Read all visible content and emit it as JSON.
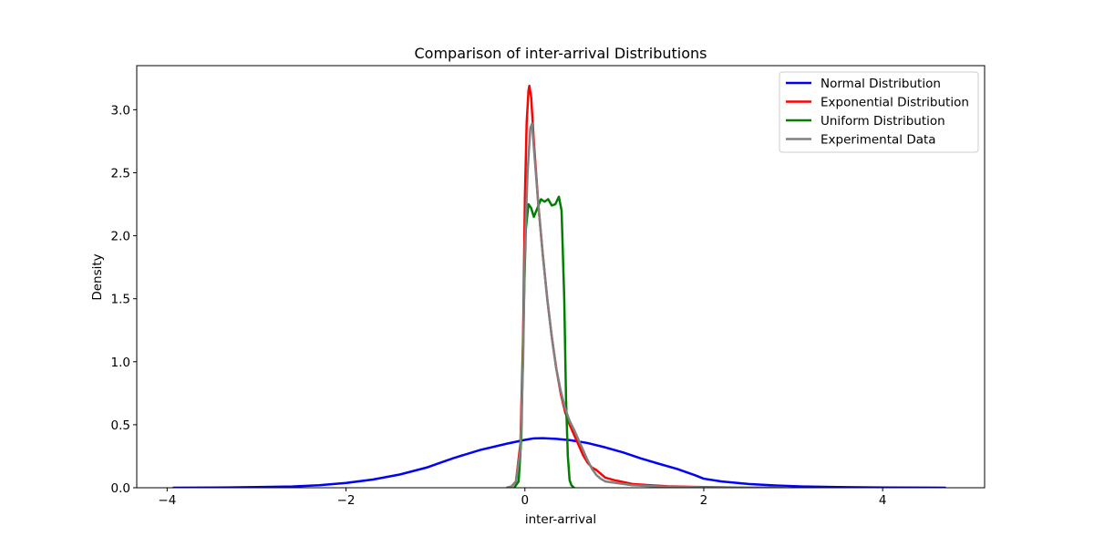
{
  "chart_data": {
    "type": "line",
    "title": "Comparison of inter-arrival Distributions",
    "xlabel": "inter-arrival",
    "ylabel": "Density",
    "xlim": [
      -4.34,
      5.14
    ],
    "ylim": [
      0.0,
      3.35
    ],
    "xticks": [
      -4,
      -2,
      0,
      2,
      4
    ],
    "xtick_labels": [
      "−4",
      "−2",
      "0",
      "2",
      "4"
    ],
    "yticks": [
      0.0,
      0.5,
      1.0,
      1.5,
      2.0,
      2.5,
      3.0
    ],
    "ytick_labels": [
      "0.0",
      "0.5",
      "1.0",
      "1.5",
      "2.0",
      "2.5",
      "3.0"
    ],
    "grid": false,
    "legend_position": "top-right",
    "series": [
      {
        "name": "Normal Distribution",
        "color": "#0000ff",
        "points": [
          [
            -3.93,
            0.0
          ],
          [
            -3.4,
            0.002
          ],
          [
            -3.0,
            0.005
          ],
          [
            -2.6,
            0.01
          ],
          [
            -2.3,
            0.02
          ],
          [
            -2.0,
            0.038
          ],
          [
            -1.7,
            0.065
          ],
          [
            -1.4,
            0.105
          ],
          [
            -1.1,
            0.16
          ],
          [
            -0.8,
            0.235
          ],
          [
            -0.5,
            0.3
          ],
          [
            -0.2,
            0.35
          ],
          [
            0.0,
            0.38
          ],
          [
            0.1,
            0.392
          ],
          [
            0.2,
            0.393
          ],
          [
            0.35,
            0.388
          ],
          [
            0.5,
            0.378
          ],
          [
            0.7,
            0.355
          ],
          [
            0.9,
            0.32
          ],
          [
            1.1,
            0.28
          ],
          [
            1.3,
            0.232
          ],
          [
            1.5,
            0.19
          ],
          [
            1.7,
            0.15
          ],
          [
            1.9,
            0.1
          ],
          [
            2.0,
            0.072
          ],
          [
            2.2,
            0.05
          ],
          [
            2.5,
            0.03
          ],
          [
            2.8,
            0.018
          ],
          [
            3.1,
            0.01
          ],
          [
            3.5,
            0.005
          ],
          [
            4.0,
            0.002
          ],
          [
            4.4,
            0.001
          ],
          [
            4.7,
            0.0
          ]
        ]
      },
      {
        "name": "Exponential Distribution",
        "color": "#ff0000",
        "points": [
          [
            -0.2,
            0.0
          ],
          [
            -0.15,
            0.01
          ],
          [
            -0.1,
            0.05
          ],
          [
            -0.05,
            0.35
          ],
          [
            -0.02,
            1.2
          ],
          [
            0.0,
            2.3
          ],
          [
            0.02,
            2.9
          ],
          [
            0.04,
            3.15
          ],
          [
            0.05,
            3.19
          ],
          [
            0.07,
            3.1
          ],
          [
            0.1,
            2.75
          ],
          [
            0.15,
            2.25
          ],
          [
            0.2,
            1.85
          ],
          [
            0.25,
            1.5
          ],
          [
            0.3,
            1.2
          ],
          [
            0.35,
            0.95
          ],
          [
            0.4,
            0.75
          ],
          [
            0.45,
            0.6
          ],
          [
            0.5,
            0.5
          ],
          [
            0.55,
            0.42
          ],
          [
            0.6,
            0.34
          ],
          [
            0.65,
            0.26
          ],
          [
            0.7,
            0.2
          ],
          [
            0.75,
            0.16
          ],
          [
            0.8,
            0.14
          ],
          [
            0.85,
            0.11
          ],
          [
            0.9,
            0.08
          ],
          [
            1.0,
            0.06
          ],
          [
            1.1,
            0.045
          ],
          [
            1.2,
            0.03
          ],
          [
            1.4,
            0.02
          ],
          [
            1.6,
            0.012
          ],
          [
            2.0,
            0.005
          ],
          [
            2.4,
            0.002
          ],
          [
            2.8,
            0.0
          ]
        ]
      },
      {
        "name": "Uniform Distribution",
        "color": "#008000",
        "points": [
          [
            -0.12,
            0.0
          ],
          [
            -0.07,
            0.05
          ],
          [
            -0.04,
            0.4
          ],
          [
            -0.01,
            1.5
          ],
          [
            0.01,
            2.05
          ],
          [
            0.04,
            2.25
          ],
          [
            0.07,
            2.22
          ],
          [
            0.1,
            2.15
          ],
          [
            0.14,
            2.22
          ],
          [
            0.18,
            2.29
          ],
          [
            0.22,
            2.27
          ],
          [
            0.26,
            2.29
          ],
          [
            0.3,
            2.24
          ],
          [
            0.34,
            2.25
          ],
          [
            0.38,
            2.31
          ],
          [
            0.41,
            2.2
          ],
          [
            0.44,
            1.5
          ],
          [
            0.46,
            0.7
          ],
          [
            0.48,
            0.25
          ],
          [
            0.5,
            0.06
          ],
          [
            0.52,
            0.02
          ],
          [
            0.55,
            0.0
          ]
        ]
      },
      {
        "name": "Experimental Data",
        "color": "#808080",
        "points": [
          [
            -0.2,
            0.0
          ],
          [
            -0.15,
            0.01
          ],
          [
            -0.1,
            0.05
          ],
          [
            -0.05,
            0.3
          ],
          [
            -0.02,
            1.0
          ],
          [
            0.0,
            1.9
          ],
          [
            0.03,
            2.5
          ],
          [
            0.06,
            2.85
          ],
          [
            0.08,
            2.89
          ],
          [
            0.1,
            2.7
          ],
          [
            0.15,
            2.25
          ],
          [
            0.2,
            1.85
          ],
          [
            0.25,
            1.5
          ],
          [
            0.3,
            1.2
          ],
          [
            0.35,
            0.95
          ],
          [
            0.4,
            0.77
          ],
          [
            0.45,
            0.63
          ],
          [
            0.5,
            0.53
          ],
          [
            0.55,
            0.46
          ],
          [
            0.6,
            0.38
          ],
          [
            0.65,
            0.3
          ],
          [
            0.7,
            0.22
          ],
          [
            0.75,
            0.15
          ],
          [
            0.8,
            0.1
          ],
          [
            0.85,
            0.07
          ],
          [
            0.9,
            0.05
          ],
          [
            1.0,
            0.04
          ],
          [
            1.1,
            0.03
          ],
          [
            1.2,
            0.02
          ],
          [
            1.5,
            0.01
          ],
          [
            2.0,
            0.003
          ],
          [
            2.5,
            0.001
          ],
          [
            2.9,
            0.0
          ]
        ]
      }
    ]
  }
}
